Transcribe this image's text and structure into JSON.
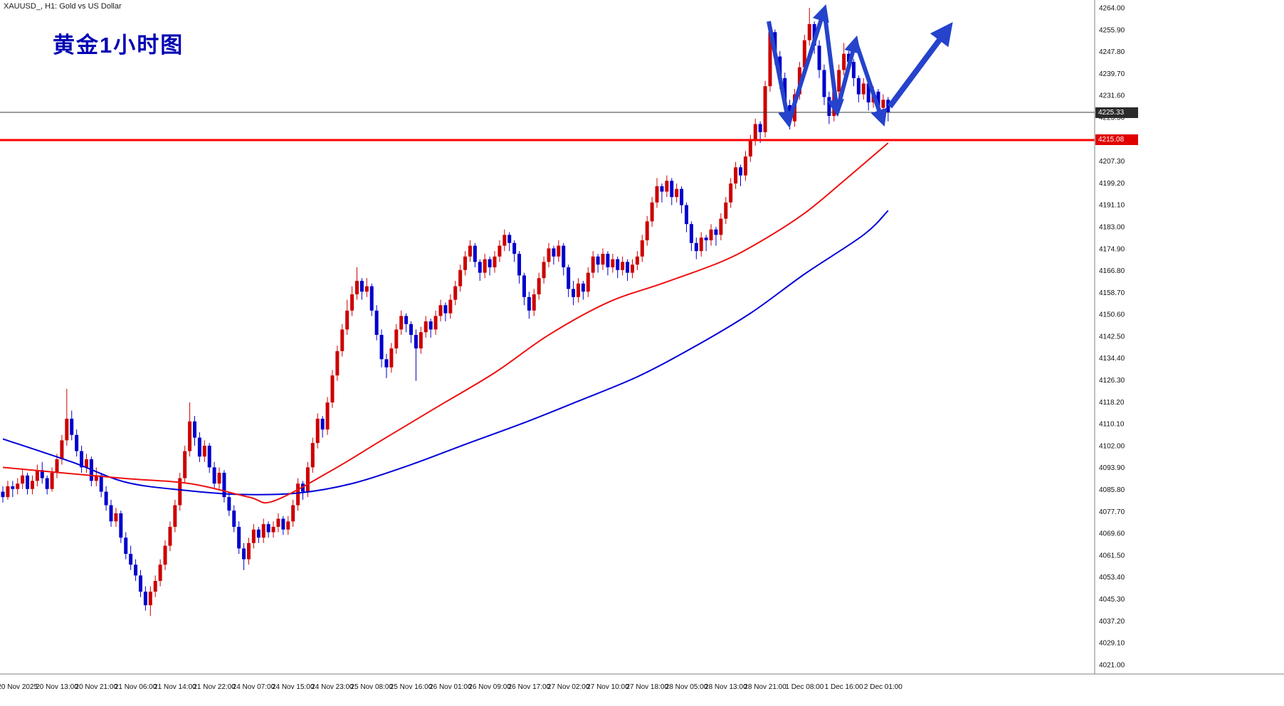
{
  "window": {
    "title": "XAUUSD_, H1:  Gold vs US Dollar"
  },
  "annotation": {
    "title": "黄金1小时图"
  },
  "price_axis": {
    "current_price": "4225.33",
    "support_price": "4215.08",
    "labels": [
      "4264.00",
      "4255.90",
      "4247.80",
      "4239.70",
      "4231.60",
      "4223.50",
      "4215.40",
      "4207.30",
      "4199.20",
      "4191.10",
      "4183.00",
      "4174.90",
      "4166.80",
      "4158.70",
      "4150.60",
      "4142.50",
      "4134.40",
      "4126.30",
      "4118.20",
      "4110.10",
      "4102.00",
      "4093.90",
      "4085.80",
      "4077.70",
      "4069.60",
      "4061.50",
      "4053.40",
      "4045.30",
      "4037.20",
      "4029.10",
      "4021.00"
    ]
  },
  "time_axis": {
    "labels": [
      "20 Nov 2025",
      "20 Nov 13:00",
      "20 Nov 21:00",
      "21 Nov 06:00",
      "21 Nov 14:00",
      "21 Nov 22:00",
      "24 Nov 07:00",
      "24 Nov 15:00",
      "24 Nov 23:00",
      "25 Nov 08:00",
      "25 Nov 16:00",
      "26 Nov 01:00",
      "26 Nov 09:00",
      "26 Nov 17:00",
      "27 Nov 02:00",
      "27 Nov 10:00",
      "27 Nov 18:00",
      "28 Nov 05:00",
      "28 Nov 13:00",
      "28 Nov 21:00",
      "1 Dec 08:00",
      "1 Dec 16:00",
      "2 Dec 01:00"
    ]
  },
  "chart_data": {
    "type": "candlestick",
    "symbol": "XAUUSD",
    "timeframe": "H1",
    "title": "黄金1小时图",
    "ylim": [
      4021.0,
      4264.0
    ],
    "price_step": 8.1,
    "support_level": 4215.08,
    "current_price": 4225.33,
    "colors": {
      "bull": "#cc0000",
      "bear": "#0000cc",
      "ma_fast": "#ee1010",
      "ma_slow": "#0000d8",
      "support_line": "#ff0000",
      "current_price_line": "#3a3a3a",
      "annotation_arrow": "#2543cb",
      "axis_text": "#111111",
      "axis_line": "#808080"
    },
    "candles": [
      [
        4085,
        4087,
        4081,
        4083
      ],
      [
        4083,
        4089,
        4082,
        4087
      ],
      [
        4087,
        4089,
        4083,
        4086
      ],
      [
        4086,
        4090,
        4084,
        4088
      ],
      [
        4088,
        4093,
        4086,
        4091
      ],
      [
        4091,
        4092,
        4084,
        4086
      ],
      [
        4086,
        4091,
        4084,
        4089
      ],
      [
        4089,
        4095,
        4087,
        4093
      ],
      [
        4093,
        4096,
        4088,
        4090
      ],
      [
        4090,
        4091,
        4084,
        4086
      ],
      [
        4086,
        4094,
        4085,
        4092
      ],
      [
        4092,
        4099,
        4090,
        4097
      ],
      [
        4097,
        4106,
        4095,
        4104
      ],
      [
        4104,
        4123,
        4102,
        4112
      ],
      [
        4112,
        4115,
        4104,
        4106
      ],
      [
        4106,
        4108,
        4098,
        4100
      ],
      [
        4100,
        4102,
        4092,
        4094
      ],
      [
        4094,
        4099,
        4092,
        4097
      ],
      [
        4097,
        4098,
        4087,
        4089
      ],
      [
        4089,
        4094,
        4087,
        4091
      ],
      [
        4091,
        4092,
        4083,
        4085
      ],
      [
        4085,
        4087,
        4078,
        4080
      ],
      [
        4080,
        4082,
        4072,
        4074
      ],
      [
        4074,
        4079,
        4072,
        4077
      ],
      [
        4077,
        4078,
        4066,
        4068
      ],
      [
        4068,
        4070,
        4060,
        4062
      ],
      [
        4062,
        4065,
        4056,
        4058
      ],
      [
        4058,
        4060,
        4052,
        4054
      ],
      [
        4054,
        4056,
        4046,
        4048
      ],
      [
        4048,
        4050,
        4041,
        4043
      ],
      [
        4043,
        4050,
        4039,
        4048
      ],
      [
        4048,
        4054,
        4046,
        4052
      ],
      [
        4052,
        4060,
        4050,
        4058
      ],
      [
        4058,
        4067,
        4056,
        4065
      ],
      [
        4065,
        4074,
        4063,
        4072
      ],
      [
        4072,
        4082,
        4070,
        4080
      ],
      [
        4080,
        4092,
        4078,
        4090
      ],
      [
        4090,
        4102,
        4088,
        4100
      ],
      [
        4100,
        4118,
        4098,
        4111
      ],
      [
        4111,
        4113,
        4102,
        4105
      ],
      [
        4105,
        4107,
        4096,
        4098
      ],
      [
        4098,
        4104,
        4096,
        4102
      ],
      [
        4102,
        4103,
        4092,
        4094
      ],
      [
        4094,
        4096,
        4086,
        4088
      ],
      [
        4088,
        4094,
        4086,
        4092
      ],
      [
        4092,
        4093,
        4081,
        4083
      ],
      [
        4083,
        4085,
        4076,
        4078
      ],
      [
        4078,
        4080,
        4070,
        4072
      ],
      [
        4072,
        4074,
        4062,
        4064
      ],
      [
        4064,
        4066,
        4056,
        4060
      ],
      [
        4060,
        4068,
        4058,
        4066
      ],
      [
        4066,
        4073,
        4064,
        4071
      ],
      [
        4071,
        4072,
        4066,
        4068
      ],
      [
        4068,
        4075,
        4066,
        4073
      ],
      [
        4073,
        4074,
        4068,
        4070
      ],
      [
        4070,
        4074,
        4068,
        4072
      ],
      [
        4072,
        4077,
        4070,
        4075
      ],
      [
        4075,
        4076,
        4069,
        4071
      ],
      [
        4071,
        4076,
        4069,
        4074
      ],
      [
        4074,
        4082,
        4072,
        4080
      ],
      [
        4080,
        4090,
        4078,
        4088
      ],
      [
        4088,
        4089,
        4082,
        4085
      ],
      [
        4085,
        4096,
        4083,
        4094
      ],
      [
        4094,
        4105,
        4092,
        4103
      ],
      [
        4103,
        4114,
        4101,
        4112
      ],
      [
        4112,
        4113,
        4105,
        4108
      ],
      [
        4108,
        4120,
        4106,
        4118
      ],
      [
        4118,
        4130,
        4116,
        4128
      ],
      [
        4128,
        4139,
        4126,
        4137
      ],
      [
        4137,
        4147,
        4135,
        4145
      ],
      [
        4145,
        4156,
        4143,
        4152
      ],
      [
        4152,
        4161,
        4150,
        4158
      ],
      [
        4158,
        4168,
        4156,
        4163
      ],
      [
        4163,
        4164,
        4156,
        4159
      ],
      [
        4159,
        4164,
        4157,
        4161
      ],
      [
        4161,
        4162,
        4150,
        4152
      ],
      [
        4152,
        4154,
        4141,
        4143
      ],
      [
        4143,
        4145,
        4131,
        4134
      ],
      [
        4134,
        4136,
        4127,
        4131
      ],
      [
        4131,
        4140,
        4129,
        4138
      ],
      [
        4138,
        4147,
        4136,
        4145
      ],
      [
        4145,
        4152,
        4143,
        4150
      ],
      [
        4150,
        4151,
        4144,
        4147
      ],
      [
        4147,
        4148,
        4140,
        4143
      ],
      [
        4143,
        4145,
        4126,
        4138
      ],
      [
        4138,
        4146,
        4136,
        4144
      ],
      [
        4144,
        4150,
        4142,
        4148
      ],
      [
        4148,
        4149,
        4142,
        4145
      ],
      [
        4145,
        4152,
        4143,
        4150
      ],
      [
        4150,
        4156,
        4148,
        4154
      ],
      [
        4154,
        4155,
        4148,
        4151
      ],
      [
        4151,
        4158,
        4149,
        4156
      ],
      [
        4156,
        4163,
        4154,
        4161
      ],
      [
        4161,
        4169,
        4159,
        4167
      ],
      [
        4167,
        4174,
        4165,
        4172
      ],
      [
        4172,
        4178,
        4170,
        4176
      ],
      [
        4176,
        4177,
        4168,
        4170
      ],
      [
        4170,
        4171,
        4163,
        4166
      ],
      [
        4166,
        4173,
        4164,
        4171
      ],
      [
        4171,
        4172,
        4165,
        4168
      ],
      [
        4168,
        4174,
        4166,
        4172
      ],
      [
        4172,
        4178,
        4170,
        4176
      ],
      [
        4176,
        4182,
        4174,
        4180
      ],
      [
        4180,
        4181,
        4174,
        4177
      ],
      [
        4177,
        4178,
        4170,
        4173
      ],
      [
        4173,
        4174,
        4162,
        4165
      ],
      [
        4165,
        4166,
        4154,
        4157
      ],
      [
        4157,
        4159,
        4149,
        4152
      ],
      [
        4152,
        4160,
        4150,
        4158
      ],
      [
        4158,
        4166,
        4156,
        4164
      ],
      [
        4164,
        4172,
        4162,
        4170
      ],
      [
        4170,
        4177,
        4168,
        4175
      ],
      [
        4175,
        4176,
        4169,
        4172
      ],
      [
        4172,
        4178,
        4170,
        4176
      ],
      [
        4176,
        4177,
        4165,
        4168
      ],
      [
        4168,
        4169,
        4157,
        4160
      ],
      [
        4160,
        4163,
        4154,
        4157
      ],
      [
        4157,
        4164,
        4155,
        4162
      ],
      [
        4162,
        4163,
        4156,
        4159
      ],
      [
        4159,
        4168,
        4157,
        4166
      ],
      [
        4166,
        4174,
        4164,
        4172
      ],
      [
        4172,
        4173,
        4166,
        4169
      ],
      [
        4169,
        4175,
        4167,
        4173
      ],
      [
        4173,
        4174,
        4165,
        4168
      ],
      [
        4168,
        4173,
        4166,
        4171
      ],
      [
        4171,
        4172,
        4164,
        4167
      ],
      [
        4167,
        4172,
        4165,
        4170
      ],
      [
        4170,
        4171,
        4163,
        4166
      ],
      [
        4166,
        4171,
        4164,
        4169
      ],
      [
        4169,
        4174,
        4167,
        4172
      ],
      [
        4172,
        4180,
        4170,
        4178
      ],
      [
        4178,
        4187,
        4176,
        4185
      ],
      [
        4185,
        4194,
        4183,
        4192
      ],
      [
        4192,
        4201,
        4190,
        4198
      ],
      [
        4198,
        4199,
        4192,
        4196
      ],
      [
        4196,
        4202,
        4194,
        4200
      ],
      [
        4200,
        4201,
        4191,
        4194
      ],
      [
        4194,
        4199,
        4192,
        4197
      ],
      [
        4197,
        4198,
        4188,
        4191
      ],
      [
        4191,
        4192,
        4181,
        4184
      ],
      [
        4184,
        4185,
        4174,
        4177
      ],
      [
        4177,
        4179,
        4171,
        4174
      ],
      [
        4174,
        4181,
        4172,
        4179
      ],
      [
        4179,
        4180,
        4174,
        4178
      ],
      [
        4178,
        4184,
        4176,
        4182
      ],
      [
        4182,
        4183,
        4176,
        4180
      ],
      [
        4180,
        4188,
        4178,
        4186
      ],
      [
        4186,
        4194,
        4184,
        4192
      ],
      [
        4192,
        4201,
        4190,
        4199
      ],
      [
        4199,
        4207,
        4197,
        4205
      ],
      [
        4205,
        4206,
        4198,
        4202
      ],
      [
        4202,
        4211,
        4200,
        4209
      ],
      [
        4209,
        4217,
        4207,
        4215
      ],
      [
        4215,
        4223,
        4213,
        4221
      ],
      [
        4221,
        4222,
        4214,
        4218
      ],
      [
        4218,
        4237,
        4216,
        4235
      ],
      [
        4235,
        4258,
        4233,
        4255
      ],
      [
        4255,
        4256,
        4243,
        4246
      ],
      [
        4246,
        4248,
        4234,
        4238
      ],
      [
        4238,
        4240,
        4225,
        4228
      ],
      [
        4228,
        4230,
        4219,
        4222
      ],
      [
        4222,
        4234,
        4220,
        4232
      ],
      [
        4232,
        4244,
        4230,
        4242
      ],
      [
        4242,
        4254,
        4240,
        4252
      ],
      [
        4252,
        4264,
        4250,
        4258
      ],
      [
        4258,
        4259,
        4247,
        4250
      ],
      [
        4250,
        4252,
        4238,
        4241
      ],
      [
        4241,
        4243,
        4228,
        4231
      ],
      [
        4231,
        4233,
        4221,
        4224
      ],
      [
        4224,
        4235,
        4222,
        4233
      ],
      [
        4233,
        4243,
        4231,
        4241
      ],
      [
        4241,
        4251,
        4239,
        4247
      ],
      [
        4247,
        4248,
        4241,
        4244
      ],
      [
        4244,
        4245,
        4235,
        4238
      ],
      [
        4238,
        4239,
        4229,
        4232
      ],
      [
        4232,
        4238,
        4230,
        4236
      ],
      [
        4236,
        4237,
        4226,
        4229
      ],
      [
        4229,
        4235,
        4227,
        4233
      ],
      [
        4233,
        4234,
        4224,
        4227
      ],
      [
        4227,
        4232,
        4225,
        4230
      ],
      [
        4230,
        4231,
        4222,
        4225.3
      ]
    ],
    "ma_fast": [
      [
        0,
        4094
      ],
      [
        24,
        4090
      ],
      [
        38,
        4088
      ],
      [
        50,
        4083
      ],
      [
        55,
        4081.5
      ],
      [
        67,
        4093
      ],
      [
        77,
        4104
      ],
      [
        88,
        4116
      ],
      [
        100,
        4129
      ],
      [
        111,
        4143
      ],
      [
        123,
        4155
      ],
      [
        134,
        4162
      ],
      [
        146,
        4170
      ],
      [
        154,
        4177.5
      ],
      [
        163,
        4188
      ],
      [
        171,
        4200
      ],
      [
        180,
        4214
      ]
    ],
    "ma_slow": [
      [
        0,
        4104.5
      ],
      [
        14,
        4096
      ],
      [
        25,
        4088.5
      ],
      [
        37,
        4085.5
      ],
      [
        48,
        4084
      ],
      [
        60,
        4084.5
      ],
      [
        71,
        4088
      ],
      [
        83,
        4095
      ],
      [
        94,
        4102.5
      ],
      [
        106,
        4110.5
      ],
      [
        117,
        4118.5
      ],
      [
        129,
        4127.5
      ],
      [
        140,
        4138
      ],
      [
        152,
        4151
      ],
      [
        163,
        4165.5
      ],
      [
        175,
        4180
      ],
      [
        180,
        4189
      ]
    ],
    "arrow_segments": [
      [
        [
          1080,
          30
        ],
        [
          1108,
          172
        ]
      ],
      [
        [
          1108,
          172
        ],
        [
          1158,
          14
        ]
      ],
      [
        [
          1158,
          14
        ],
        [
          1176,
          156
        ]
      ],
      [
        [
          1176,
          156
        ],
        [
          1202,
          58
        ]
      ],
      [
        [
          1202,
          58
        ],
        [
          1240,
          170
        ]
      ]
    ],
    "projection_arrow": [
      [
        1250,
        150
      ],
      [
        1332,
        40
      ]
    ]
  }
}
